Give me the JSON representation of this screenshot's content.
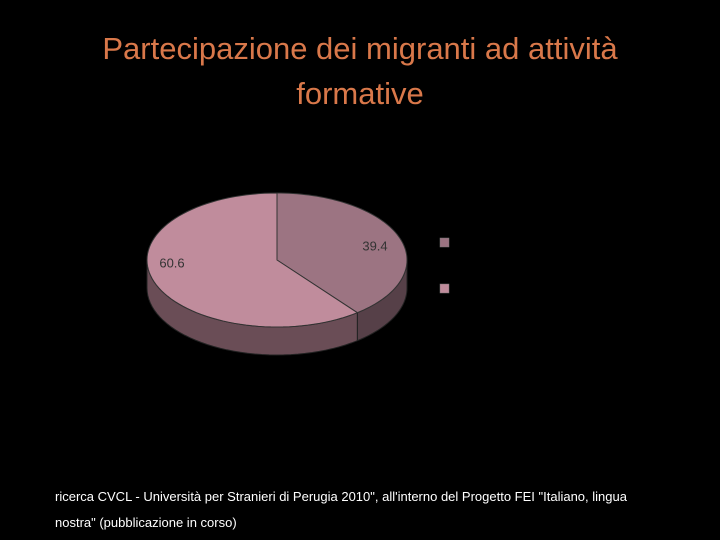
{
  "chart_data": {
    "type": "pie",
    "title": "Partecipazione dei migranti ad attività formative",
    "values": [
      39.4,
      60.6
    ],
    "colors": [
      "#9c7482",
      "#c08c9c"
    ],
    "footnote": [
      "ricerca CVCL - Università per Stranieri di Perugia 2010\", all'interno del Progetto FEI \"Italiano, lingua",
      "nostra\" (pubblicazione in corso)"
    ]
  }
}
